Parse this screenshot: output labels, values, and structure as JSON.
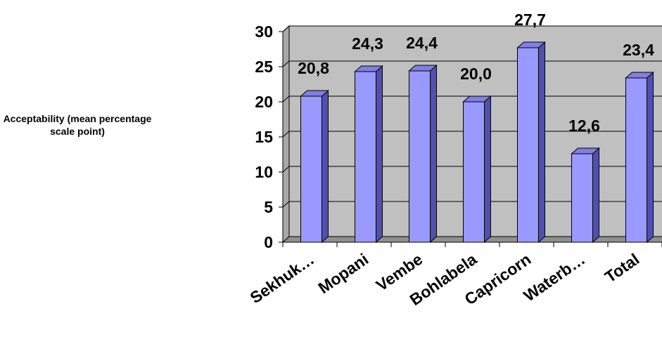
{
  "chart_data": {
    "type": "bar",
    "title": "",
    "xlabel": "",
    "ylabel": "Acceptability (mean percentage scale point)",
    "categories": [
      "Sekhuk…",
      "Mopani",
      "Vembe",
      "Bohlabela",
      "Capricorn",
      "Waterb…",
      "Total"
    ],
    "values": [
      20.8,
      24.3,
      24.4,
      20.0,
      27.7,
      12.6,
      23.4
    ],
    "data_labels": [
      "20,8",
      "24,3",
      "24,4",
      "20,0",
      "27,7",
      "12,6",
      "23,4"
    ],
    "ylim": [
      0,
      30
    ],
    "yticks": [
      "0",
      "5",
      "10",
      "15",
      "20",
      "25",
      "30"
    ],
    "grid": true,
    "legend": "none",
    "colors": {
      "bar_front": "#9999ff",
      "bar_side": "#5050b0",
      "bar_top": "#8080e0",
      "plot_back": "#c0c0c0",
      "plot_floor": "#909090"
    }
  }
}
